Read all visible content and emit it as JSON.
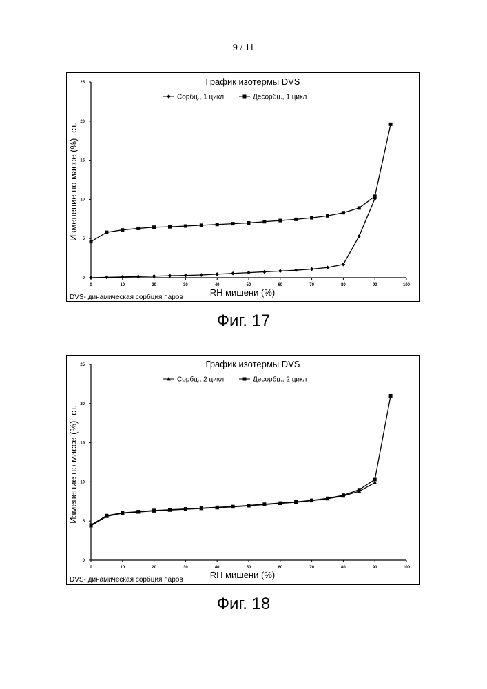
{
  "page": {
    "number": "9 / 11",
    "captions": [
      "Фиг. 17",
      "Фиг. 18"
    ]
  },
  "chart_data": [
    {
      "type": "line",
      "title": "График изотермы DVS",
      "xlabel": "RH мишени (%)",
      "ylabel": "Изменение по массе (%) -ст.",
      "footnote": "DVS- динамическая сорбция паров",
      "xlim": [
        0,
        100
      ],
      "ylim": [
        0,
        25
      ],
      "xticks": [
        0,
        10,
        20,
        30,
        40,
        50,
        60,
        70,
        80,
        90,
        100
      ],
      "yticks": [
        0,
        5,
        10,
        15,
        20,
        25
      ],
      "grid": false,
      "legend_position": "top-center",
      "series": [
        {
          "name": "Сорбц., 1 цикл",
          "marker": "diamond",
          "color": "#000000",
          "x": [
            0,
            5,
            10,
            15,
            20,
            25,
            30,
            35,
            40,
            45,
            50,
            55,
            60,
            65,
            70,
            75,
            80,
            85,
            90
          ],
          "y": [
            0.0,
            0.05,
            0.1,
            0.15,
            0.2,
            0.25,
            0.3,
            0.35,
            0.45,
            0.55,
            0.65,
            0.75,
            0.85,
            0.95,
            1.1,
            1.3,
            1.7,
            5.3,
            10.1
          ]
        },
        {
          "name": "Десорбц., 1 цикл",
          "marker": "square",
          "color": "#000000",
          "x": [
            0,
            5,
            10,
            15,
            20,
            25,
            30,
            35,
            40,
            45,
            50,
            55,
            60,
            65,
            70,
            75,
            80,
            85,
            90,
            95
          ],
          "y": [
            4.6,
            5.8,
            6.1,
            6.3,
            6.45,
            6.5,
            6.6,
            6.7,
            6.8,
            6.9,
            7.0,
            7.15,
            7.3,
            7.45,
            7.65,
            7.9,
            8.3,
            8.9,
            10.4,
            19.6
          ]
        }
      ]
    },
    {
      "type": "line",
      "title": "График изотермы DVS",
      "xlabel": "RH мишени (%)",
      "ylabel": "Изменение по массе (%) -ст.",
      "footnote": "DVS- динамическая сорбция паров",
      "xlim": [
        0,
        100
      ],
      "ylim": [
        0,
        25
      ],
      "xticks": [
        0,
        10,
        20,
        30,
        40,
        50,
        60,
        70,
        80,
        90,
        100
      ],
      "yticks": [
        0,
        5,
        10,
        15,
        20,
        25
      ],
      "grid": false,
      "legend_position": "top-center",
      "series": [
        {
          "name": "Сорбц., 2 цикл",
          "marker": "triangle",
          "color": "#000000",
          "x": [
            0,
            5,
            10,
            15,
            20,
            25,
            30,
            35,
            40,
            45,
            50,
            55,
            60,
            65,
            70,
            75,
            80,
            85,
            90
          ],
          "y": [
            4.4,
            5.6,
            6.0,
            6.15,
            6.3,
            6.4,
            6.5,
            6.6,
            6.7,
            6.8,
            6.95,
            7.1,
            7.25,
            7.4,
            7.6,
            7.85,
            8.2,
            8.8,
            9.9
          ]
        },
        {
          "name": "Десорбц., 2 цикл",
          "marker": "square",
          "color": "#000000",
          "x": [
            0,
            5,
            10,
            15,
            20,
            25,
            30,
            35,
            40,
            45,
            50,
            55,
            60,
            65,
            70,
            75,
            80,
            85,
            90,
            95
          ],
          "y": [
            4.5,
            5.7,
            6.05,
            6.2,
            6.35,
            6.45,
            6.55,
            6.65,
            6.75,
            6.85,
            7.0,
            7.15,
            7.3,
            7.45,
            7.65,
            7.9,
            8.3,
            9.0,
            10.3,
            21.0
          ]
        }
      ]
    }
  ]
}
